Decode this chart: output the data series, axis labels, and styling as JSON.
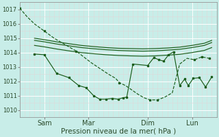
{
  "xlabel": "Pression niveau de la mer( hPa )",
  "bg_color": "#c8ede8",
  "grid_color": "#ffffff",
  "grid_color_minor": "#e0d8d8",
  "line_color": "#1a5c1a",
  "ylim": [
    1009.5,
    1017.5
  ],
  "yticks": [
    1010,
    1011,
    1012,
    1013,
    1014,
    1015,
    1016,
    1017
  ],
  "xlim": [
    0,
    8.0
  ],
  "xtick_positions": [
    1.0,
    2.8,
    5.2,
    7.0
  ],
  "xtick_labels": [
    "Sam",
    "Mar",
    "Dim",
    "Lun"
  ],
  "vline_positions": [
    1.0,
    2.8,
    5.2,
    7.0
  ],
  "s1_x": [
    0.0,
    0.3,
    0.6,
    1.0,
    1.4,
    1.9,
    2.3,
    2.6,
    2.9,
    3.25,
    3.6,
    3.9,
    4.05,
    4.3,
    4.55,
    4.8,
    5.05,
    5.3,
    5.6,
    5.9,
    6.2,
    6.5,
    6.8,
    7.1,
    7.4,
    7.7
  ],
  "s1_y": [
    1017.1,
    1016.5,
    1016.0,
    1015.5,
    1015.0,
    1014.5,
    1014.1,
    1013.7,
    1013.3,
    1012.9,
    1012.5,
    1012.2,
    1011.9,
    1011.7,
    1011.4,
    1011.1,
    1010.85,
    1010.7,
    1010.7,
    1010.9,
    1011.2,
    1013.2,
    1013.6,
    1013.5,
    1013.7,
    1013.6
  ],
  "s1_markers_x": [
    0.0,
    1.0,
    2.3,
    4.05,
    5.3,
    5.6,
    7.1,
    7.4,
    7.7
  ],
  "s1_markers_y": [
    1017.1,
    1015.5,
    1014.1,
    1011.9,
    1010.7,
    1010.7,
    1013.5,
    1013.7,
    1013.6
  ],
  "s2_x": [
    0.6,
    1.0,
    1.5,
    2.0,
    2.5,
    3.0,
    3.5,
    4.0,
    4.5,
    5.0,
    5.5,
    6.0,
    6.5,
    7.0,
    7.5,
    7.8
  ],
  "s2_y": [
    1015.0,
    1014.9,
    1014.75,
    1014.62,
    1014.5,
    1014.42,
    1014.35,
    1014.3,
    1014.28,
    1014.26,
    1014.28,
    1014.32,
    1014.38,
    1014.5,
    1014.65,
    1014.85
  ],
  "s3_x": [
    0.6,
    1.0,
    1.5,
    2.0,
    2.5,
    3.0,
    3.5,
    4.0,
    4.5,
    5.0,
    5.5,
    6.0,
    6.5,
    7.0,
    7.5,
    7.8
  ],
  "s3_y": [
    1014.85,
    1014.75,
    1014.6,
    1014.47,
    1014.35,
    1014.27,
    1014.2,
    1014.15,
    1014.12,
    1014.1,
    1014.12,
    1014.17,
    1014.23,
    1014.35,
    1014.5,
    1014.7
  ],
  "s4_x": [
    0.6,
    1.0,
    1.5,
    2.0,
    2.5,
    3.0,
    3.5,
    4.0,
    4.5,
    5.0,
    5.5,
    6.0,
    6.5,
    7.0,
    7.5,
    7.8
  ],
  "s4_y": [
    1014.5,
    1014.4,
    1014.25,
    1014.12,
    1014.0,
    1013.92,
    1013.85,
    1013.8,
    1013.77,
    1013.75,
    1013.77,
    1013.82,
    1013.88,
    1014.0,
    1014.15,
    1014.35
  ],
  "s5_x": [
    0.6,
    1.0,
    1.5,
    2.0,
    2.4,
    2.7,
    3.0,
    3.25,
    3.5,
    3.75,
    4.0,
    4.2,
    4.35,
    4.6,
    5.2,
    5.45,
    5.65,
    5.85,
    6.05,
    6.25,
    6.5,
    6.7,
    6.85,
    7.05,
    7.3,
    7.55,
    7.8
  ],
  "s5_y": [
    1013.9,
    1013.85,
    1012.55,
    1012.25,
    1011.7,
    1011.55,
    1011.0,
    1010.75,
    1010.75,
    1010.8,
    1010.75,
    1010.85,
    1010.9,
    1013.2,
    1013.1,
    1013.65,
    1013.5,
    1013.4,
    1013.85,
    1014.05,
    1011.7,
    1012.15,
    1011.7,
    1012.2,
    1012.25,
    1011.6,
    1012.3
  ]
}
